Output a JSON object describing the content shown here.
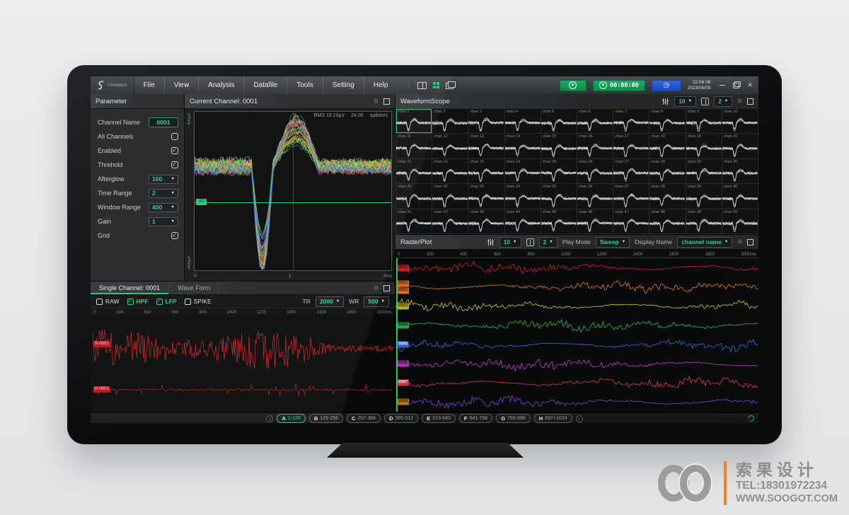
{
  "window": {
    "logo": "STARMED",
    "menu": [
      "File",
      "View",
      "Analysis",
      "Datafile",
      "Tools",
      "Setting",
      "Help"
    ],
    "record_time": "00:00:00",
    "clock_time": "22:56:08",
    "clock_date": "2023/05/05"
  },
  "parameter_panel": {
    "title": "Parameter",
    "rows": [
      {
        "label": "Channel Name",
        "type": "input",
        "value": "0001"
      },
      {
        "label": "All Channels",
        "type": "checkbox",
        "checked": false
      },
      {
        "label": "Enabled",
        "type": "checkbox",
        "checked": true
      },
      {
        "label": "Threhold",
        "type": "checkbox",
        "checked": true
      },
      {
        "label": "Afterglow",
        "type": "dropdown",
        "value": "100"
      },
      {
        "label": "Time Range",
        "type": "dropdown",
        "value": "2"
      },
      {
        "label": "Window Range",
        "type": "dropdown",
        "value": "400"
      },
      {
        "label": "Gain",
        "type": "dropdown",
        "value": "1"
      },
      {
        "label": "Grid",
        "type": "checkbox",
        "checked": true
      }
    ]
  },
  "current_channel": {
    "title": "Current Channel: 0001",
    "rms": "RMS 19.10μV",
    "spike_rate": "24.00",
    "spike_rate_unit": "spikes/s",
    "y_label_top": "400μV",
    "y_label_bottom": "-400μV",
    "x_ticks": [
      "0",
      "1",
      "2ms"
    ],
    "threshold": "-60",
    "trace_colors": [
      "#e23a2e",
      "#f0801f",
      "#f2cf2a",
      "#9fd32a",
      "#2fc06a",
      "#2ac0b4",
      "#2f8fe6",
      "#3a55e0",
      "#9a4ae6",
      "#e63a9a",
      "#c2302a",
      "#f0a01f",
      "#66d42a",
      "#e6e63a"
    ]
  },
  "waveform_scope": {
    "title": "WaveformScope",
    "dropdown1": "10",
    "dropdown2": "2",
    "selected_channel": "chan 1",
    "channels": [
      "chan 1",
      "chan 2",
      "chan 3",
      "chan 4",
      "chan 5",
      "chan 6",
      "chan 7",
      "chan 8",
      "chan 9",
      "chan 10",
      "chan 11",
      "chan 12",
      "chan 13",
      "chan 14",
      "chan 15",
      "chan 16",
      "chan 17",
      "chan 18",
      "chan 19",
      "chan 20",
      "chan 21",
      "chan 22",
      "chan 23",
      "chan 24",
      "chan 25",
      "chan 26",
      "chan 27",
      "chan 28",
      "chan 29",
      "chan 30",
      "chan 31",
      "chan 32",
      "chan 33",
      "chan 34",
      "chan 35",
      "chan 36",
      "chan 37",
      "chan 38",
      "chan 39",
      "chan 40",
      "chan 41",
      "chan 42",
      "chan 43",
      "chan 44",
      "chan 45",
      "chan 46",
      "chan 47",
      "chan 48",
      "chan 49",
      "chan 50"
    ]
  },
  "raster_plot": {
    "title": "RasterPlot",
    "dropdown1": "10",
    "dropdown2": "2",
    "play_mode_label": "Play Mode",
    "play_mode_value": "Sweep",
    "display_name_label": "Display Name",
    "display_name_value": "channel name",
    "x_ticks": [
      "0",
      "200",
      "400",
      "600",
      "800",
      "1000",
      "1200",
      "1400",
      "1600",
      "1800",
      "2000ms"
    ],
    "rows": [
      {
        "tags": [
          "0001"
        ],
        "color": "#e2212a",
        "tag_bg": "#c91e26",
        "tag_text": "#3a0505"
      },
      {
        "tags": [
          "0002",
          "0003"
        ],
        "color": "#f0811f",
        "tag_bg": "#d96f12",
        "tag_text": "#3a1d02"
      },
      {
        "tags": [
          "0003"
        ],
        "color": "#ddd32e",
        "tag_bg": "#b3aa24",
        "tag_text": "#333104"
      },
      {
        "tags": [
          "0004"
        ],
        "color": "#2fbf5d",
        "tag_bg": "#23a04c",
        "tag_text": "#04300f"
      },
      {
        "tags": [
          "0005"
        ],
        "color": "#3f6de6",
        "tag_bg": "#3357c7",
        "tag_text": "#e8eefc"
      },
      {
        "tags": [
          "0006"
        ],
        "color": "#d23fd2",
        "tag_bg": "#b032b0",
        "tag_text": "#3a053a"
      },
      {
        "tags": [
          "0007"
        ],
        "color": "#e63a55",
        "tag_bg": "#c72f46",
        "tag_text": "#fdeaea"
      },
      {
        "tags": [
          "0008"
        ],
        "color": "#8743e0",
        "tag_bg": "#b5741f",
        "tag_text": "#33210a"
      }
    ]
  },
  "single_channel": {
    "tab_active": "Single Channel: 0001",
    "tab_inactive": "Wave Form",
    "filters": [
      {
        "label": "RAW",
        "checked": false
      },
      {
        "label": "HPF",
        "checked": true
      },
      {
        "label": "LFP",
        "checked": true
      },
      {
        "label": "SPIKE",
        "checked": false
      }
    ],
    "tr_label": "TR",
    "tr_value": "2000",
    "wr_label": "WR",
    "wr_value": "500",
    "x_ticks": [
      "0",
      "200",
      "400",
      "600",
      "800",
      "1000",
      "1200",
      "1400",
      "1600",
      "1800",
      "2000ms"
    ],
    "trace_tags": [
      "R-0001",
      "H-0001"
    ],
    "trace_color": "#d81e24"
  },
  "bank_bar": {
    "banks": [
      {
        "letter": "A",
        "range": "1-128",
        "active": true
      },
      {
        "letter": "B",
        "range": "129-256",
        "active": false
      },
      {
        "letter": "C",
        "range": "257-384",
        "active": false
      },
      {
        "letter": "D",
        "range": "385-512",
        "active": false
      },
      {
        "letter": "E",
        "range": "513-640",
        "active": false
      },
      {
        "letter": "F",
        "range": "641-768",
        "active": false
      },
      {
        "letter": "G",
        "range": "769-896",
        "active": false
      },
      {
        "letter": "H",
        "range": "897+1024",
        "active": false
      }
    ]
  },
  "watermark": {
    "name": "索果设计",
    "tel": "TEL:18301972234",
    "site": "WWW.SOOGOT.COM"
  }
}
